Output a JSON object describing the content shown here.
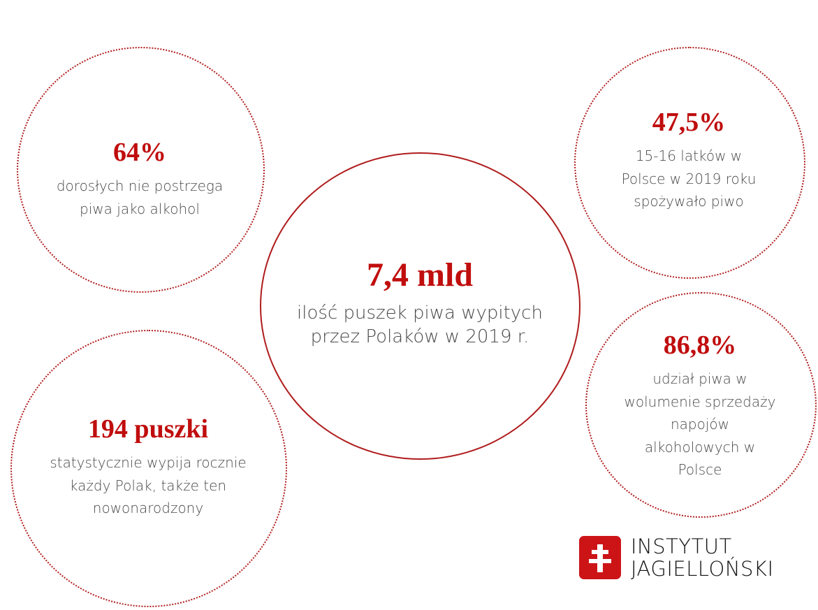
{
  "stats": [
    {
      "value": "64%",
      "lines": [
        "dorosłych nie postrzega",
        "piwa jako alkohol"
      ]
    },
    {
      "value": "47,5%",
      "lines": [
        "15-16 latków w",
        "Polsce w 2019 roku",
        "spożywało piwo"
      ]
    },
    {
      "value": "7,4 mld",
      "lines": [
        "ilość puszek piwa wypitych",
        "przez Polaków w 2019 r."
      ]
    },
    {
      "value": "86,8%",
      "lines": [
        "udział piwa w",
        "wolumenie sprzedaży",
        "napojów",
        "alkoholowych w",
        "Polsce"
      ]
    },
    {
      "value": "194 puszki",
      "lines": [
        "statystycznie wypija rocznie",
        "każdy Polak, także ten",
        "nowonarodzony"
      ]
    }
  ],
  "logo": {
    "line1": "INSTYTUT",
    "line2": "JAGIELLOŃSKI"
  },
  "colors": {
    "accent": "#c00d0d",
    "text": "#4a4a4a"
  }
}
